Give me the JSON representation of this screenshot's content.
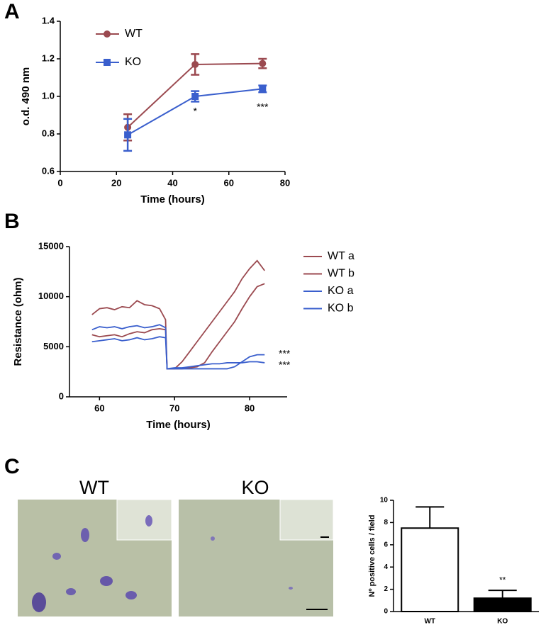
{
  "panel_labels": [
    "A",
    "B",
    "C"
  ],
  "images": [
    {
      "label": "WT"
    },
    {
      "label": "KO"
    }
  ],
  "chart_data": [
    {
      "type": "errorline",
      "xlabel": "Time  (hours)",
      "ylabel": "o.d. 490 nm",
      "x": [
        24,
        48,
        72
      ],
      "series": [
        {
          "name": "WT",
          "color": "#9b4a50",
          "marker": "circle",
          "values": [
            0.835,
            1.17,
            1.175
          ],
          "errors": [
            0.07,
            0.055,
            0.025
          ]
        },
        {
          "name": "KO",
          "color": "#3a5fcd",
          "marker": "square",
          "values": [
            0.795,
            1.0,
            1.04
          ],
          "errors": [
            0.085,
            0.028,
            0.018
          ]
        }
      ],
      "xlim": [
        0,
        80
      ],
      "xticks": [
        0,
        20,
        40,
        60,
        80
      ],
      "ylim": [
        0.6,
        1.4
      ],
      "yticks": [
        0.6,
        0.8,
        {
          "value": 1,
          "label": "1.0"
        },
        1.2,
        1.4
      ],
      "annotations": [
        "*",
        "***"
      ],
      "legend": "top-left"
    },
    {
      "type": "line",
      "xlabel": "Time (hours)",
      "ylabel": "Resistance (ohm)",
      "x": [
        59,
        60,
        61,
        62,
        63,
        64,
        65,
        66,
        67,
        68,
        68.8,
        69,
        70,
        71,
        72,
        73,
        74,
        75,
        76,
        77,
        78,
        79,
        80,
        81,
        82
      ],
      "series": [
        {
          "name": "WT a",
          "color": "#9b4a50",
          "values": [
            8200,
            8800,
            8900,
            8700,
            9000,
            8900,
            9600,
            9200,
            9100,
            8800,
            7700,
            2800,
            2800,
            3500,
            4500,
            5500,
            6500,
            7500,
            8500,
            9500,
            10500,
            11800,
            12800,
            13600,
            12600
          ]
        },
        {
          "name": "WT b",
          "color": "#9b4a50",
          "values": [
            6200,
            6000,
            6100,
            6200,
            6000,
            6300,
            6500,
            6400,
            6700,
            6800,
            6700,
            2800,
            2800,
            2800,
            2900,
            3000,
            3400,
            4500,
            5500,
            6500,
            7500,
            8800,
            10000,
            11000,
            11300
          ]
        },
        {
          "name": "KO a",
          "color": "#3a5fcd",
          "values": [
            6700,
            7000,
            6900,
            7000,
            6800,
            7000,
            7100,
            6900,
            7000,
            7200,
            6900,
            2800,
            2800,
            2800,
            2800,
            2800,
            2800,
            2800,
            2800,
            2800,
            3000,
            3500,
            4000,
            4200,
            4200
          ]
        },
        {
          "name": "KO b",
          "color": "#3a5fcd",
          "values": [
            5500,
            5600,
            5700,
            5800,
            5600,
            5700,
            5900,
            5700,
            5800,
            6000,
            5900,
            2800,
            2900,
            2900,
            3000,
            3100,
            3200,
            3300,
            3300,
            3400,
            3400,
            3400,
            3500,
            3500,
            3400
          ]
        }
      ],
      "xlim": [
        56,
        85
      ],
      "xticks": [
        60,
        70,
        80
      ],
      "ylim": [
        0,
        15000
      ],
      "yticks": [
        0,
        5000,
        10000,
        15000
      ],
      "annotations": [
        "***",
        "***"
      ],
      "legend": "right"
    },
    {
      "type": "bar",
      "ylabel": "Nº positive cells / field",
      "categories": [
        "WT",
        "KO"
      ],
      "values": [
        7.5,
        1.2
      ],
      "errors": [
        1.9,
        0.7
      ],
      "colors": [
        "#ffffff",
        "#000000"
      ],
      "ylim": [
        0,
        10
      ],
      "yticks": [
        0,
        2,
        4,
        6,
        8,
        10
      ],
      "annotations": [
        "**"
      ]
    }
  ]
}
